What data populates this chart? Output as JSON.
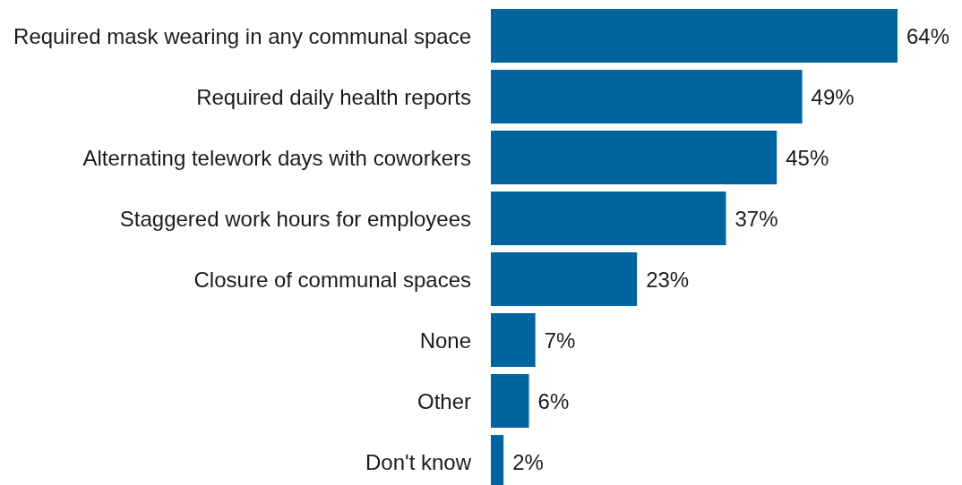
{
  "chart_data": {
    "type": "bar",
    "orientation": "horizontal",
    "categories": [
      "Required mask wearing in any communal space",
      "Required daily health reports",
      "Alternating telework days with coworkers",
      "Staggered work hours for employees",
      "Closure of communal spaces",
      "None",
      "Other",
      "Don't know"
    ],
    "values": [
      64,
      49,
      45,
      37,
      23,
      7,
      6,
      2
    ],
    "value_labels": [
      "64%",
      "49%",
      "45%",
      "37%",
      "23%",
      "7%",
      "6%",
      "2%"
    ],
    "color": "#00649f",
    "grid": false,
    "legend": false
  }
}
